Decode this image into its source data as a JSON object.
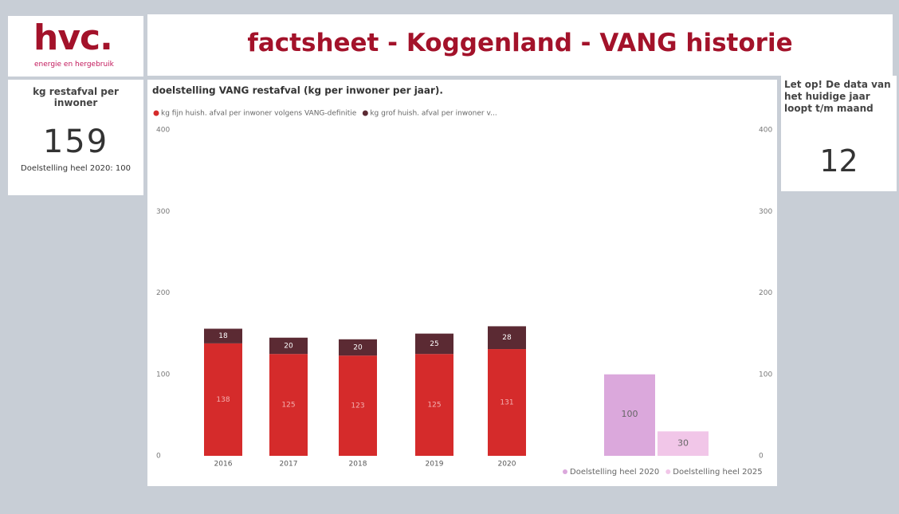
{
  "logo": {
    "mark": "hvc.",
    "tagline": "energie en hergebruik"
  },
  "header": {
    "title": "factsheet - Koggenland - VANG historie"
  },
  "kpi_left": {
    "label": "kg restafval per inwoner",
    "value": 159,
    "note": "Doelstelling heel 2020: 100"
  },
  "kpi_right": {
    "label": "Let op! De data van het huidige jaar loopt t/m maand",
    "value": 12
  },
  "chart_data": {
    "type": "bar",
    "stacked": true,
    "title": "doelstelling VANG restafval (kg per inwoner per jaar).",
    "categories": [
      "2016",
      "2017",
      "2018",
      "2019",
      "2020"
    ],
    "series": [
      {
        "name": "kg fijn huish. afval per inwoner volgens VANG-definitie",
        "color": "#d52b2b",
        "values": [
          138,
          125,
          123,
          125,
          131
        ]
      },
      {
        "name": "kg grof huish. afval per inwoner v...",
        "color": "#5b2a33",
        "values": [
          18,
          20,
          20,
          25,
          28
        ]
      }
    ],
    "targets": [
      {
        "name": "Doelstelling heel 2020",
        "color": "#dba8dc",
        "value": 100,
        "axis": "y2"
      },
      {
        "name": "Doelstelling heel 2025",
        "color": "#f1c6e8",
        "value": 30,
        "axis": "y2"
      }
    ],
    "ylim": [
      0,
      400
    ],
    "yticks": [
      0,
      100,
      200,
      300,
      400
    ],
    "y2lim": [
      0,
      400
    ],
    "y2ticks": [
      0,
      100,
      200,
      300,
      400
    ]
  }
}
